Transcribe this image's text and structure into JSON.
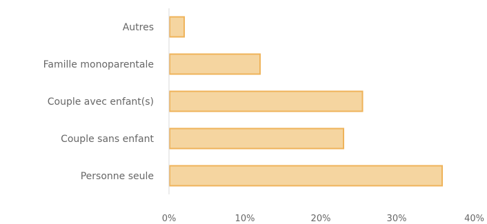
{
  "chart_data": {
    "type": "bar",
    "orientation": "horizontal",
    "categories": [
      "Autres",
      "Famille monoparentale",
      "Couple avec enfant(s)",
      "Couple sans enfant",
      "Personne seule"
    ],
    "values": [
      2,
      12,
      25.5,
      23,
      36
    ],
    "xlim": [
      0,
      40
    ],
    "xticks": [
      "0%",
      "10%",
      "20%",
      "30%",
      "40%"
    ],
    "xtick_values": [
      0,
      10,
      20,
      30,
      40
    ],
    "grid": false,
    "colors": {
      "bar_fill": "#F5D5A0",
      "bar_stroke": "#EFB35A",
      "axis": "#D9D9D9",
      "text": "#666666"
    }
  }
}
